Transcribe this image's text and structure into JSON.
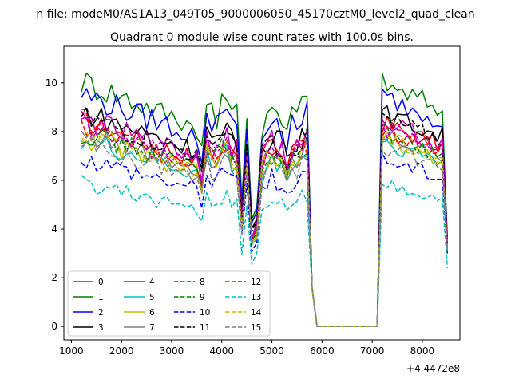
{
  "figure": {
    "suptitle": "n file: modeM0/AS1A13_049T05_9000006050_45170cztM0_level2_quad_clean"
  },
  "chart_data": {
    "type": "line",
    "title": "Quadrant 0 module wise count rates with 100.0s bins.",
    "xlabel": "",
    "ylabel": "",
    "x_offset_label": "+4.4472e8",
    "xlim": [
      850,
      8750
    ],
    "ylim": [
      -0.55,
      11.5
    ],
    "xticks": [
      1000,
      2000,
      3000,
      4000,
      5000,
      6000,
      7000,
      8000
    ],
    "xtick_labels": [
      "1000",
      "2000",
      "3000",
      "4000",
      "5000",
      "6000",
      "7000",
      "8000"
    ],
    "yticks": [
      0,
      2,
      4,
      6,
      8,
      10
    ],
    "ytick_labels": [
      "0",
      "2",
      "4",
      "6",
      "8",
      "10"
    ],
    "grid": false,
    "legend_placement": "lower-left",
    "legend_columns": 4,
    "x": [
      1200,
      1300,
      1400,
      1500,
      1600,
      1700,
      1800,
      1900,
      2000,
      2100,
      2200,
      2300,
      2400,
      2500,
      2600,
      2700,
      2800,
      2900,
      3000,
      3100,
      3200,
      3300,
      3400,
      3500,
      3600,
      3700,
      3800,
      3900,
      4000,
      4100,
      4200,
      4300,
      4400,
      4500,
      4600,
      4700,
      4800,
      4900,
      5000,
      5100,
      5200,
      5300,
      5400,
      5500,
      5600,
      5700,
      5800,
      5900,
      6000,
      6100,
      6200,
      6300,
      6400,
      6500,
      6600,
      6700,
      6800,
      6900,
      7000,
      7100,
      7200,
      7300,
      7400,
      7500,
      7600,
      7700,
      7800,
      7900,
      8000,
      8100,
      8200,
      8300,
      8400,
      8500
    ],
    "gap": {
      "x_start": 5800,
      "x_end": 7100
    },
    "series": [
      {
        "name": "0",
        "color": "#ff0000",
        "dash": "solid",
        "base": 8.0,
        "end": 3.3
      },
      {
        "name": "1",
        "color": "#008000",
        "dash": "solid",
        "base": 9.6,
        "end": 3.5
      },
      {
        "name": "2",
        "color": "#0000ff",
        "dash": "solid",
        "base": 9.1,
        "end": 3.6
      },
      {
        "name": "3",
        "color": "#000000",
        "dash": "solid",
        "base": 8.4,
        "end": 3.4
      },
      {
        "name": "4",
        "color": "#bf00bf",
        "dash": "solid",
        "base": 8.1,
        "end": 3.3
      },
      {
        "name": "5",
        "color": "#00bfbf",
        "dash": "solid",
        "base": 7.3,
        "end": 3.1
      },
      {
        "name": "6",
        "color": "#bfbf00",
        "dash": "solid",
        "base": 7.4,
        "end": 3.2
      },
      {
        "name": "7",
        "color": "#808080",
        "dash": "solid",
        "base": 7.6,
        "end": 3.2
      },
      {
        "name": "8",
        "color": "#ff0000",
        "dash": "dashed",
        "base": 7.8,
        "end": 3.3
      },
      {
        "name": "9",
        "color": "#008000",
        "dash": "dashed",
        "base": 7.6,
        "end": 3.2
      },
      {
        "name": "10",
        "color": "#0000ff",
        "dash": "dashed",
        "base": 6.6,
        "end": 3.0
      },
      {
        "name": "11",
        "color": "#000000",
        "dash": "dashed",
        "base": 8.2,
        "end": 3.4
      },
      {
        "name": "12",
        "color": "#bf00bf",
        "dash": "dashed",
        "base": 7.9,
        "end": 3.3
      },
      {
        "name": "13",
        "color": "#00bfbf",
        "dash": "dashed",
        "base": 5.6,
        "end": 2.4
      },
      {
        "name": "14",
        "color": "#bfbf00",
        "dash": "dashed",
        "base": 7.5,
        "end": 3.2
      },
      {
        "name": "15",
        "color": "#808080",
        "dash": "dashed",
        "base": 7.1,
        "end": 3.1
      }
    ]
  }
}
